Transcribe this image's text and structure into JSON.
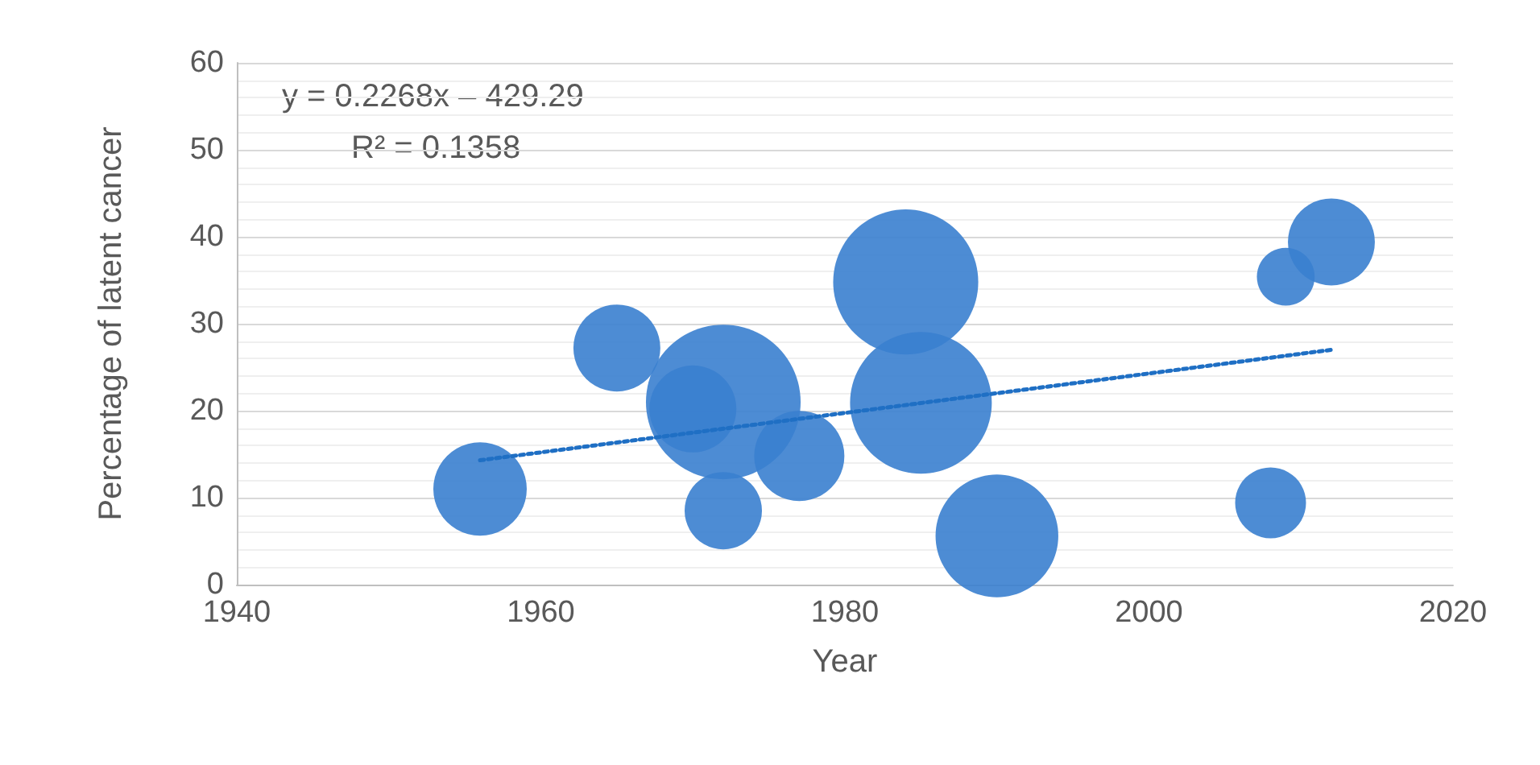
{
  "chart_data": {
    "type": "bubble",
    "xlabel": "Year",
    "ylabel": "Percentage of latent cancer",
    "annotations": [
      "y = 0.2268x – 429.29",
      "R² = 0.1358"
    ],
    "series": [
      {
        "type": "bubble",
        "color": "#3a80cf",
        "x": [
          1956,
          1965,
          1972,
          1970,
          1972,
          1977,
          1984,
          1985,
          1990,
          2008,
          2009,
          2012
        ],
        "values": [
          11,
          27.2,
          21,
          20.2,
          8.5,
          14.8,
          34.8,
          20.9,
          5.6,
          9.4,
          35.4,
          39.4
        ],
        "sizes": [
          0.365,
          0.316,
          1,
          0.316,
          0.25,
          0.34,
          0.88,
          0.84,
          0.63,
          0.21,
          0.14,
          0.316
        ]
      },
      {
        "type": "line",
        "color": "#1f6fc4",
        "x": [
          1956,
          2012
        ],
        "values": [
          14.3,
          27
        ],
        "line_style": "dotted",
        "marker": "none"
      }
    ],
    "xlim": [
      1940,
      2020
    ],
    "xticks": [
      1940,
      1960,
      1980,
      2000,
      2020
    ],
    "ylim": [
      0,
      60
    ],
    "yticks": [
      0,
      10,
      20,
      30,
      40,
      50,
      60
    ],
    "grid": "y"
  }
}
